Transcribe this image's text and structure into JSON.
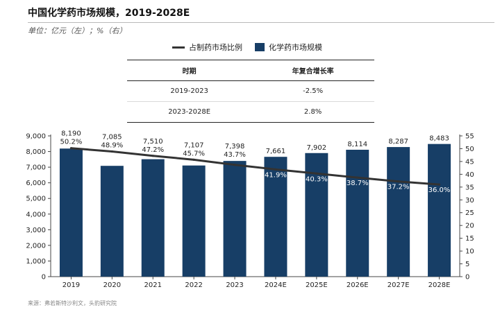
{
  "header": {
    "title": "中国化学药市场规模，2019-2028E",
    "unit": "单位：亿元（左）；%（右）"
  },
  "legend": {
    "line_label": "占制药市场比例",
    "bar_label": "化学药市场规模"
  },
  "cagr_table": {
    "headers": [
      "时期",
      "年复合增长率"
    ],
    "rows": [
      [
        "2019-2023",
        "-2.5%"
      ],
      [
        "2023-2028E",
        "2.8%"
      ]
    ]
  },
  "chart_data": {
    "type": "bar",
    "categories": [
      "2019",
      "2020",
      "2021",
      "2022",
      "2023",
      "2024E",
      "2025E",
      "2026E",
      "2027E",
      "2028E"
    ],
    "series": [
      {
        "name": "化学药市场规模",
        "type": "bar",
        "axis": "left",
        "values": [
          8190,
          7085,
          7510,
          7107,
          7398,
          7661,
          7902,
          8114,
          8287,
          8483
        ],
        "labels": [
          "8,190",
          "7,085",
          "7,510",
          "7,107",
          "7,398",
          "7,661",
          "7,902",
          "8,114",
          "8,287",
          "8,483"
        ]
      },
      {
        "name": "占制药市场比例",
        "type": "line",
        "axis": "right",
        "values": [
          50.2,
          48.9,
          47.2,
          45.7,
          43.7,
          41.9,
          40.3,
          38.7,
          37.2,
          36.0
        ],
        "labels": [
          "50.2%",
          "48.9%",
          "47.2%",
          "45.7%",
          "43.7%",
          "41.9%",
          "40.3%",
          "38.7%",
          "37.2%",
          "36.0%"
        ]
      }
    ],
    "y_left": {
      "lim": [
        0,
        9000
      ],
      "ticks": [
        "0",
        "1,000",
        "2,000",
        "3,000",
        "4,000",
        "5,000",
        "6,000",
        "7,000",
        "8,000",
        "9,000"
      ]
    },
    "y_right": {
      "lim": [
        0,
        55
      ],
      "ticks": [
        "0",
        "5",
        "10",
        "15",
        "20",
        "25",
        "30",
        "35",
        "40",
        "45",
        "50",
        "55"
      ]
    },
    "grid": false,
    "legend_position": "top-center"
  },
  "colors": {
    "bar": "#173e66",
    "line": "#333333"
  },
  "source": "来源：弗若斯特沙利文，头豹研究院"
}
